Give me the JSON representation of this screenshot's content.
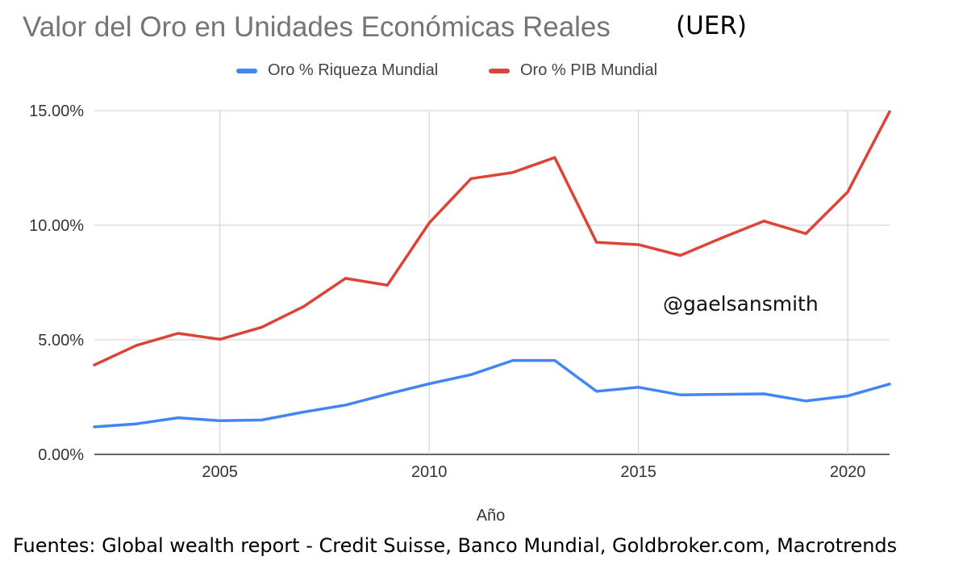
{
  "title_main": "Valor del Oro en Unidades Económicas Reales",
  "title_suffix": "(UER)",
  "watermark": "@gaelsansmith",
  "sources": "Fuentes: Global wealth report - Credit Suisse, Banco Mundial, Goldbroker.com, Macrotrends",
  "chart_data": {
    "type": "line",
    "title": "Valor del Oro en Unidades Económicas Reales",
    "xlabel": "Año",
    "ylabel": "",
    "xlim": [
      2002,
      2021
    ],
    "ylim": [
      0,
      15
    ],
    "x_ticks": [
      2005,
      2010,
      2015,
      2020
    ],
    "y_ticks": [
      0,
      5,
      10,
      15
    ],
    "y_tick_labels": [
      "0.00%",
      "5.00%",
      "10.00%",
      "15.00%"
    ],
    "grid": true,
    "legend_position": "top",
    "x": [
      2002,
      2003,
      2004,
      2005,
      2006,
      2007,
      2008,
      2009,
      2010,
      2011,
      2012,
      2013,
      2014,
      2015,
      2016,
      2017,
      2018,
      2019,
      2020,
      2021
    ],
    "series": [
      {
        "name": "Oro % Riqueza Mundial",
        "color": "#4285F4",
        "values": [
          1.2,
          1.33,
          1.6,
          1.47,
          1.5,
          1.85,
          2.15,
          2.63,
          3.08,
          3.48,
          4.1,
          4.1,
          2.75,
          2.93,
          2.6,
          2.62,
          2.64,
          2.33,
          2.55,
          3.07
        ]
      },
      {
        "name": "Oro % PIB Mundial",
        "color": "#DB4437",
        "values": [
          3.9,
          4.75,
          5.28,
          5.02,
          5.55,
          6.45,
          7.68,
          7.38,
          10.1,
          12.03,
          12.3,
          12.95,
          9.25,
          9.15,
          8.68,
          9.45,
          10.18,
          9.63,
          11.45,
          14.95
        ]
      }
    ]
  }
}
